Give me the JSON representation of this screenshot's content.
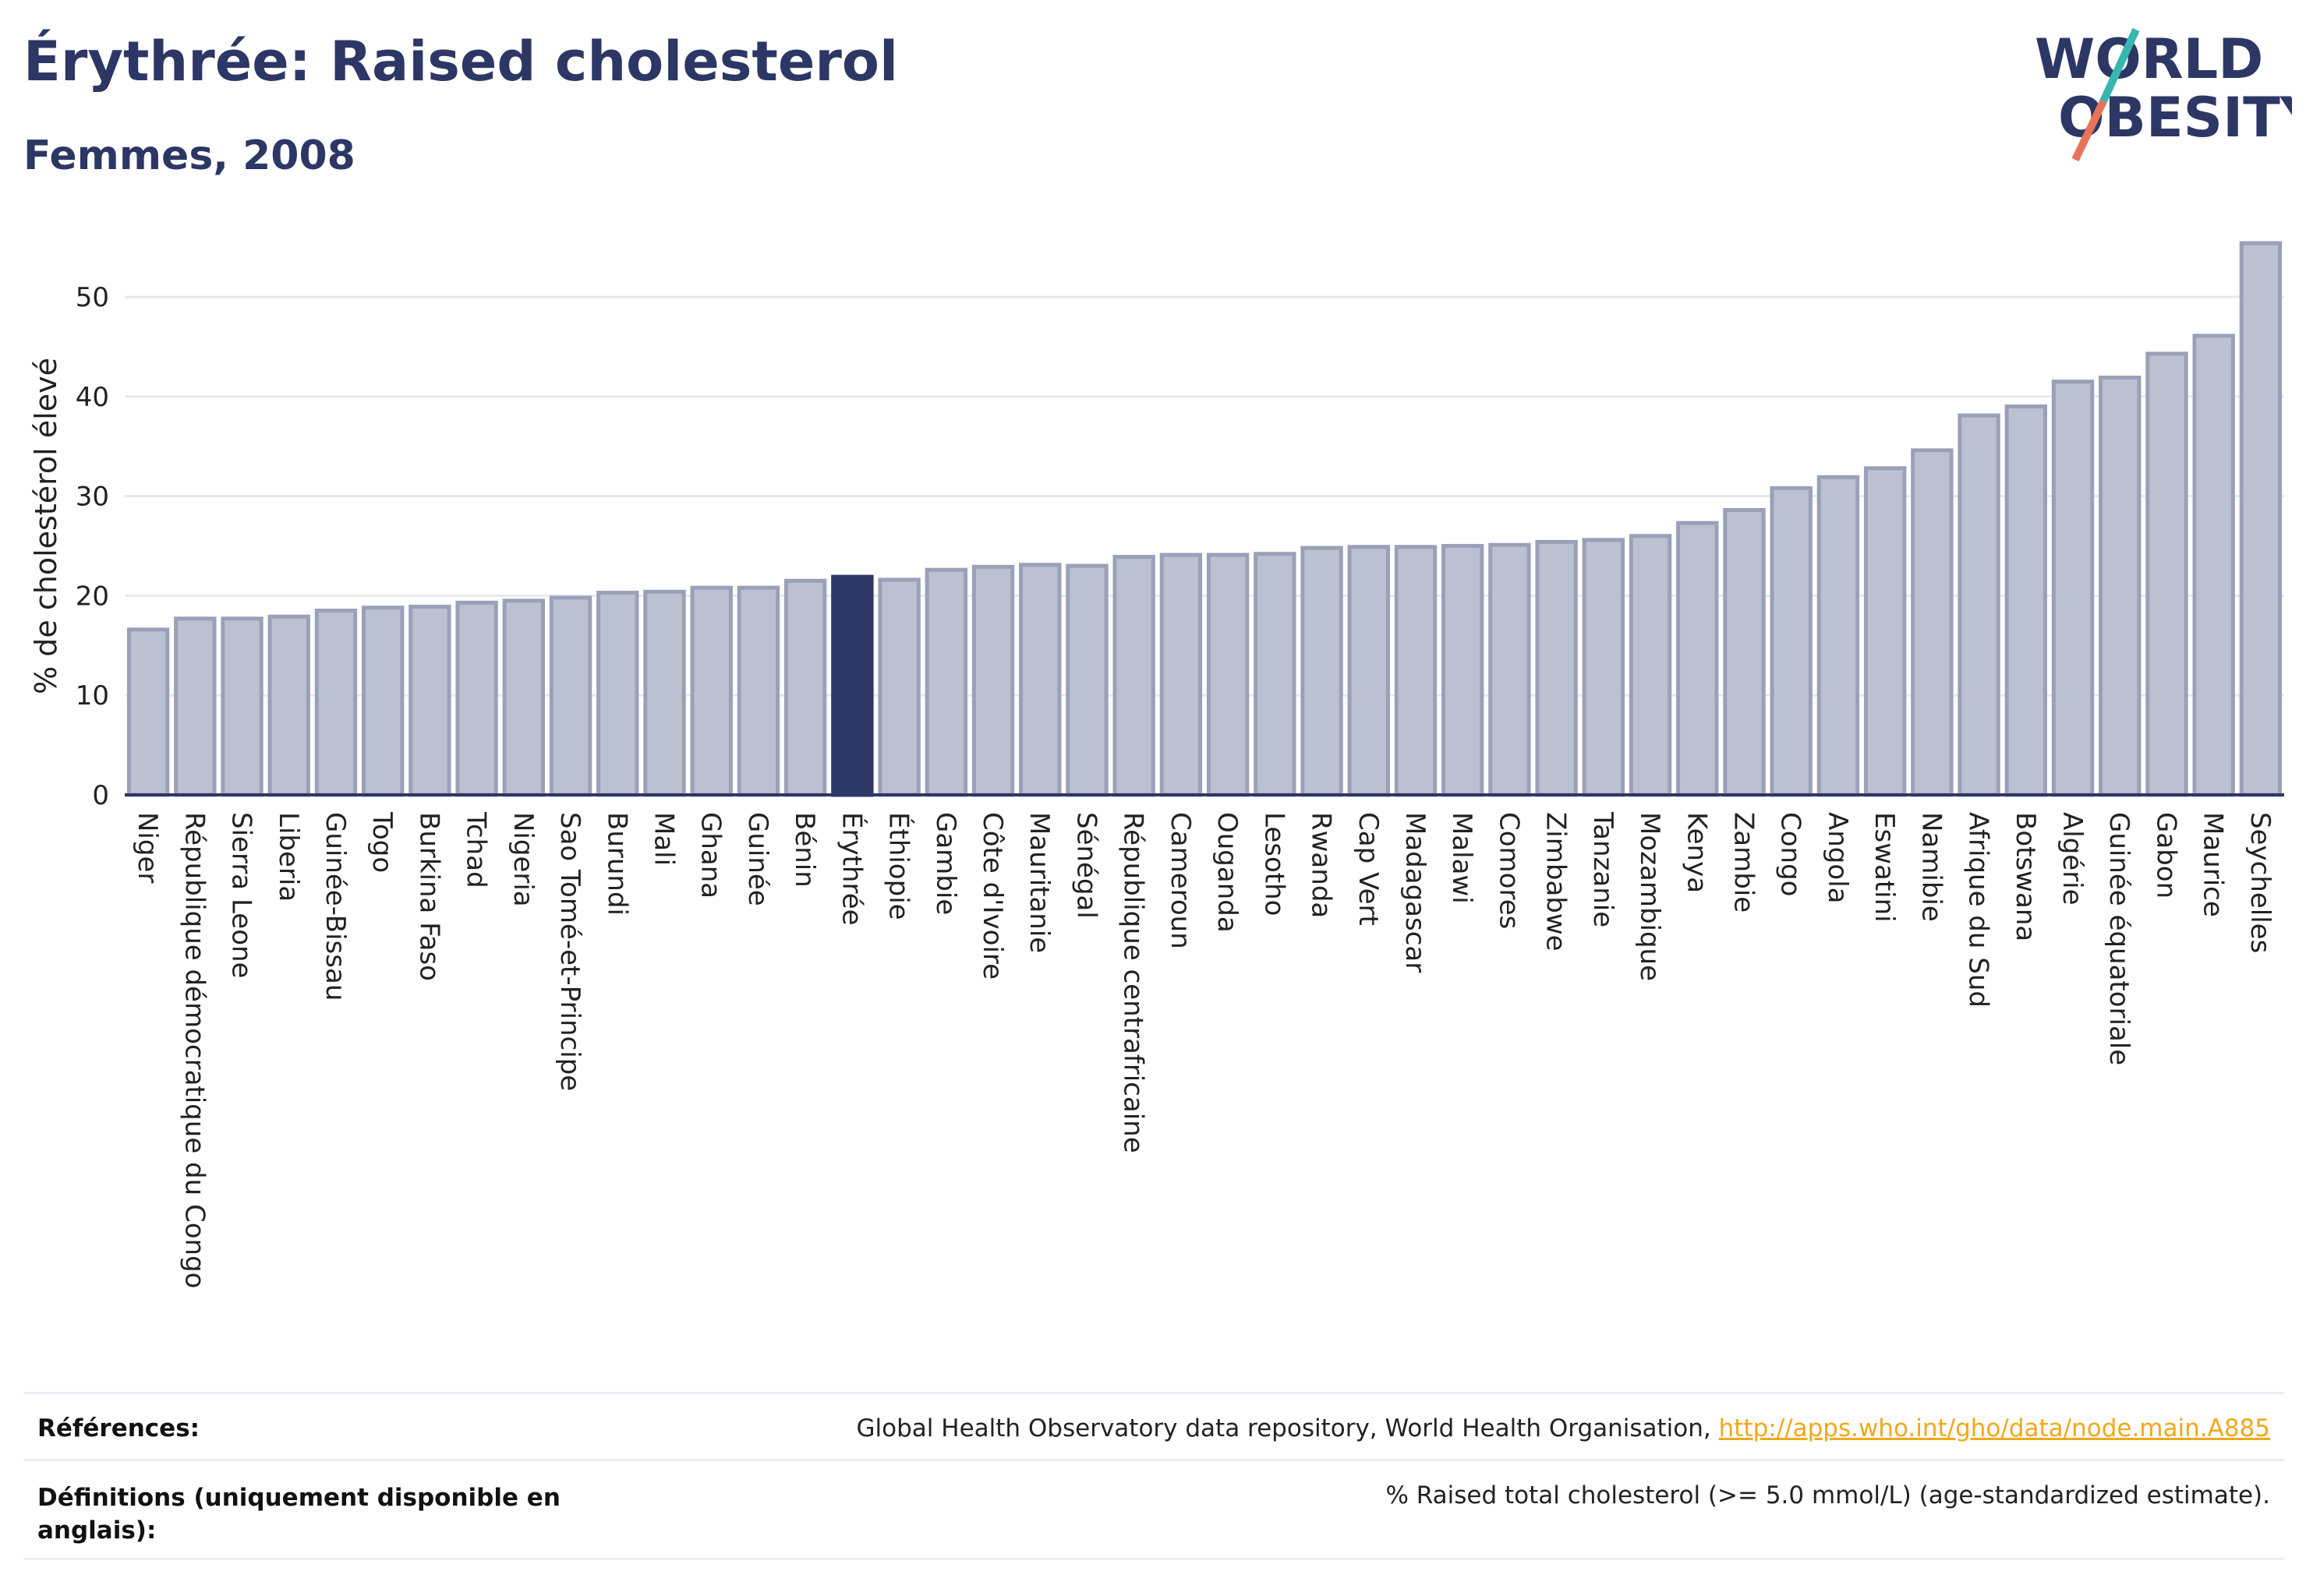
{
  "header": {
    "title": "Érythrée: Raised cholesterol",
    "subtitle": "Femmes, 2008"
  },
  "logo": {
    "line1": "WORLD",
    "line2": "OBESITY",
    "slash_colors": [
      "#38b6b0",
      "#e8735a"
    ]
  },
  "colors": {
    "bar": "#bcc1d1",
    "bar_stroke": "#9aa0b8",
    "highlight": "#2d3765",
    "grid": "#e6e8ee",
    "axis": "#2d3765"
  },
  "chart_data": {
    "type": "bar",
    "ylabel": "% de cholestérol élevé",
    "ylim": [
      0,
      57
    ],
    "yticks": [
      0,
      10,
      20,
      30,
      40,
      50
    ],
    "highlight": "Érythrée",
    "categories": [
      "Niger",
      "République démocratique du Congo",
      "Sierra Leone",
      "Liberia",
      "Guinée-Bissau",
      "Togo",
      "Burkina Faso",
      "Tchad",
      "Nigeria",
      "Sao Tomé-et-Principe",
      "Burundi",
      "Mali",
      "Ghana",
      "Guinée",
      "Bénin",
      "Érythrée",
      "Éthiopie",
      "Gambie",
      "Côte d'Ivoire",
      "Mauritanie",
      "Sénégal",
      "République centrafricaine",
      "Cameroun",
      "Ouganda",
      "Lesotho",
      "Rwanda",
      "Cap Vert",
      "Madagascar",
      "Malawi",
      "Comores",
      "Zimbabwe",
      "Tanzanie",
      "Mozambique",
      "Kenya",
      "Zambie",
      "Congo",
      "Angola",
      "Eswatini",
      "Namibie",
      "Afrique du Sud",
      "Botswana",
      "Algérie",
      "Guinée équatoriale",
      "Gabon",
      "Maurice",
      "Seychelles"
    ],
    "values": [
      16.6,
      17.7,
      17.7,
      17.9,
      18.5,
      18.8,
      18.9,
      19.3,
      19.5,
      19.8,
      20.3,
      20.4,
      20.8,
      20.8,
      21.5,
      21.9,
      21.6,
      22.6,
      22.9,
      23.1,
      23.0,
      23.9,
      24.1,
      24.1,
      24.2,
      24.8,
      24.9,
      24.9,
      25.0,
      25.1,
      25.4,
      25.6,
      26.0,
      27.3,
      28.6,
      30.8,
      31.9,
      32.8,
      34.6,
      38.1,
      39.0,
      41.5,
      41.9,
      44.3,
      46.1,
      55.4
    ]
  },
  "footer": {
    "references_label": "Références:",
    "references_text": "Global Health Observatory data repository, World Health Organisation, ",
    "references_link": "http://apps.who.int/gho/data/node.main.A885",
    "definitions_label_line1": "Définitions (uniquement disponible en",
    "definitions_label_line2": "anglais):",
    "definitions_text": "% Raised total cholesterol (>= 5.0 mmol/L) (age-standardized estimate)."
  }
}
